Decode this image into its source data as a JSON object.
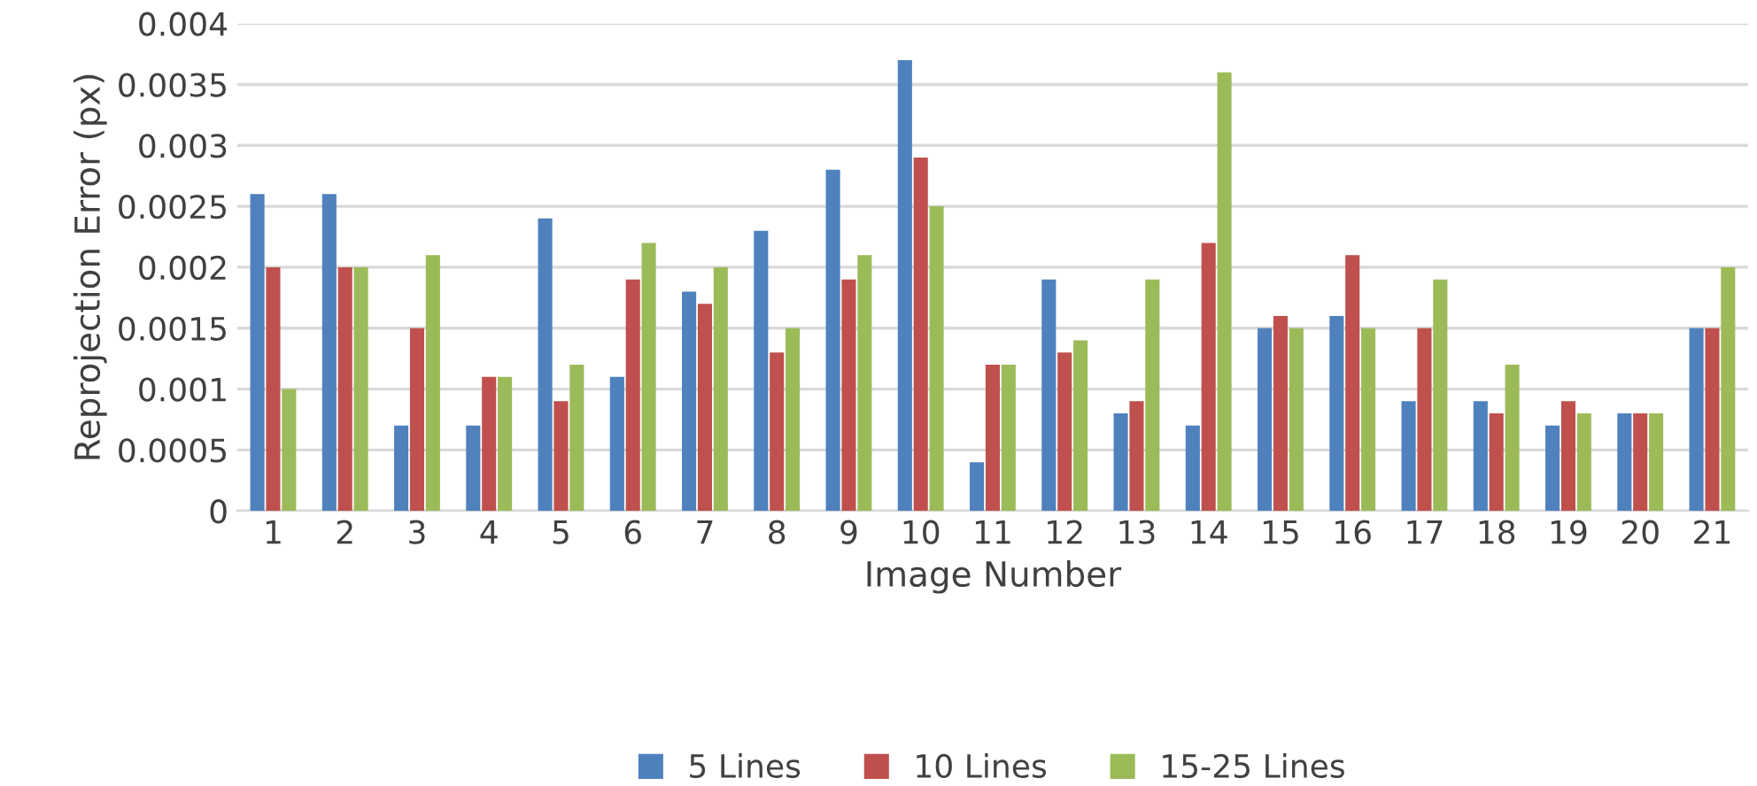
{
  "chart_data": {
    "type": "bar",
    "xlabel": "Image Number",
    "ylabel": "Reprojection Error (px)",
    "categories": [
      "1",
      "2",
      "3",
      "4",
      "5",
      "6",
      "7",
      "8",
      "9",
      "10",
      "11",
      "12",
      "13",
      "14",
      "15",
      "16",
      "17",
      "18",
      "19",
      "20",
      "21"
    ],
    "series": [
      {
        "name": "5 Lines",
        "color": "#4f81bd",
        "values": [
          0.0026,
          0.0026,
          0.0007,
          0.0007,
          0.0024,
          0.0011,
          0.0018,
          0.0023,
          0.0028,
          0.0037,
          0.0004,
          0.0019,
          0.0008,
          0.0007,
          0.0015,
          0.0016,
          0.0009,
          0.0009,
          0.0007,
          0.0008,
          0.0015
        ]
      },
      {
        "name": "10 Lines",
        "color": "#c0504d",
        "values": [
          0.002,
          0.002,
          0.0015,
          0.0011,
          0.0009,
          0.0019,
          0.0017,
          0.0013,
          0.0019,
          0.0029,
          0.0012,
          0.0013,
          0.0009,
          0.0022,
          0.0016,
          0.0021,
          0.0015,
          0.0008,
          0.0009,
          0.0008,
          0.0015
        ]
      },
      {
        "name": "15-25 Lines",
        "color": "#9bbb59",
        "values": [
          0.001,
          0.002,
          0.0021,
          0.0011,
          0.0012,
          0.0022,
          0.002,
          0.0015,
          0.0021,
          0.0025,
          0.0012,
          0.0014,
          0.0019,
          0.0036,
          0.0015,
          0.0015,
          0.0019,
          0.0012,
          0.0008,
          0.0008,
          0.002
        ]
      }
    ],
    "ylim": [
      0,
      0.004
    ],
    "yticks": [
      0,
      0.0005,
      0.001,
      0.0015,
      0.002,
      0.0025,
      0.003,
      0.0035,
      0.004
    ],
    "grid": "y",
    "legend": "bottom"
  }
}
